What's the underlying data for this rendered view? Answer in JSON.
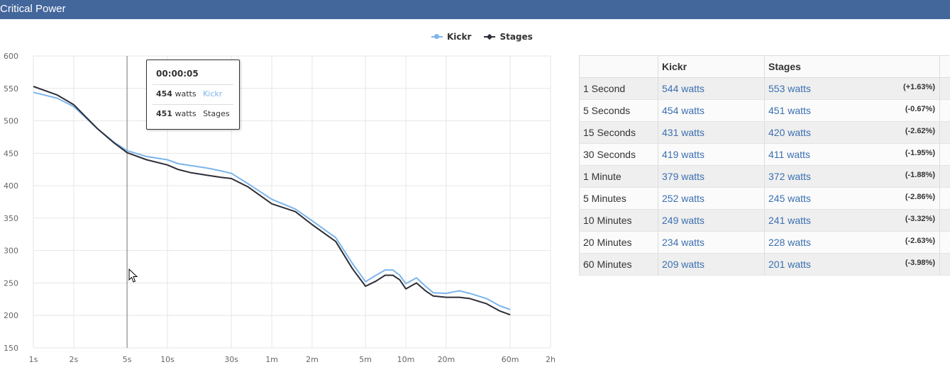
{
  "title": "Critical Power",
  "legend": [
    {
      "name": "Kickr",
      "color": "#7cb5ec",
      "marker": "circle-icon"
    },
    {
      "name": "Stages",
      "color": "#2e2e38",
      "marker": "diamond-icon"
    }
  ],
  "tooltip": {
    "time": "00:00:05",
    "rows": [
      {
        "value": "454",
        "unit": "watts",
        "series": "Kickr"
      },
      {
        "value": "451",
        "unit": "watts",
        "series": "Stages"
      }
    ]
  },
  "chart_data": {
    "type": "line",
    "x_scale": "log",
    "y_ticks": [
      "600",
      "550",
      "500",
      "450",
      "400",
      "350",
      "300",
      "250",
      "200",
      "150"
    ],
    "x_ticks": [
      "1s",
      "2s",
      "5s",
      "10s",
      "30s",
      "1m",
      "2m",
      "5m",
      "10m",
      "20m",
      "60m",
      "2h"
    ],
    "ylim": [
      150,
      600
    ],
    "grid": true,
    "legend_position": "top-center",
    "series": [
      {
        "name": "Kickr",
        "color": "#7cb5ec",
        "points": [
          [
            1,
            544
          ],
          [
            1.5,
            535
          ],
          [
            2,
            522
          ],
          [
            3,
            488
          ],
          [
            4,
            467
          ],
          [
            5,
            454
          ],
          [
            7,
            445
          ],
          [
            10,
            440
          ],
          [
            12,
            434
          ],
          [
            15,
            431
          ],
          [
            20,
            427
          ],
          [
            25,
            423
          ],
          [
            30,
            419
          ],
          [
            40,
            403
          ],
          [
            60,
            379
          ],
          [
            90,
            364
          ],
          [
            120,
            346
          ],
          [
            180,
            320
          ],
          [
            240,
            280
          ],
          [
            300,
            252
          ],
          [
            360,
            262
          ],
          [
            420,
            270
          ],
          [
            480,
            270
          ],
          [
            540,
            262
          ],
          [
            600,
            249
          ],
          [
            720,
            258
          ],
          [
            840,
            245
          ],
          [
            960,
            235
          ],
          [
            1200,
            234
          ],
          [
            1500,
            238
          ],
          [
            1800,
            234
          ],
          [
            2400,
            226
          ],
          [
            3000,
            215
          ],
          [
            3600,
            209
          ]
        ]
      },
      {
        "name": "Stages",
        "color": "#2e2e38",
        "points": [
          [
            1,
            553
          ],
          [
            1.5,
            540
          ],
          [
            2,
            525
          ],
          [
            3,
            488
          ],
          [
            4,
            466
          ],
          [
            5,
            451
          ],
          [
            7,
            440
          ],
          [
            10,
            432
          ],
          [
            12,
            425
          ],
          [
            15,
            420
          ],
          [
            20,
            416
          ],
          [
            25,
            413
          ],
          [
            30,
            411
          ],
          [
            40,
            398
          ],
          [
            60,
            372
          ],
          [
            90,
            360
          ],
          [
            120,
            340
          ],
          [
            180,
            314
          ],
          [
            240,
            272
          ],
          [
            300,
            245
          ],
          [
            360,
            253
          ],
          [
            420,
            262
          ],
          [
            480,
            262
          ],
          [
            540,
            255
          ],
          [
            600,
            241
          ],
          [
            720,
            250
          ],
          [
            840,
            238
          ],
          [
            960,
            230
          ],
          [
            1200,
            228
          ],
          [
            1500,
            228
          ],
          [
            1800,
            226
          ],
          [
            2400,
            218
          ],
          [
            3000,
            207
          ],
          [
            3600,
            201
          ]
        ]
      }
    ]
  },
  "table": {
    "headers": [
      "",
      "Kickr",
      "Stages"
    ],
    "rows": [
      {
        "label": "1 Second",
        "kickr": "544 watts",
        "stages": "553 watts",
        "diff": "(+1.63%)"
      },
      {
        "label": "5 Seconds",
        "kickr": "454 watts",
        "stages": "451 watts",
        "diff": "(-0.67%)"
      },
      {
        "label": "15 Seconds",
        "kickr": "431 watts",
        "stages": "420 watts",
        "diff": "(-2.62%)"
      },
      {
        "label": "30 Seconds",
        "kickr": "419 watts",
        "stages": "411 watts",
        "diff": "(-1.95%)"
      },
      {
        "label": "1 Minute",
        "kickr": "379 watts",
        "stages": "372 watts",
        "diff": "(-1.88%)"
      },
      {
        "label": "5 Minutes",
        "kickr": "252 watts",
        "stages": "245 watts",
        "diff": "(-2.86%)"
      },
      {
        "label": "10 Minutes",
        "kickr": "249 watts",
        "stages": "241 watts",
        "diff": "(-3.32%)"
      },
      {
        "label": "20 Minutes",
        "kickr": "234 watts",
        "stages": "228 watts",
        "diff": "(-2.63%)"
      },
      {
        "label": "60 Minutes",
        "kickr": "209 watts",
        "stages": "201 watts",
        "diff": "(-3.98%)"
      }
    ]
  }
}
